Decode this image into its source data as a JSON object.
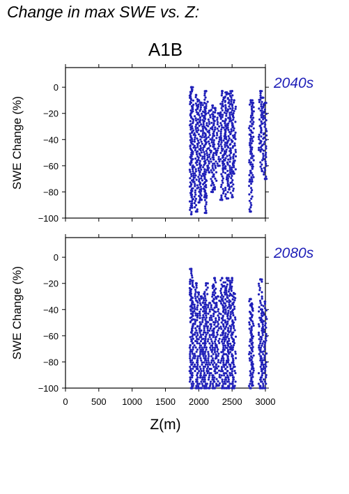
{
  "page": {
    "title": "Change in max SWE vs. Z:"
  },
  "chart_data": {
    "type": "scatter",
    "title": "A1B",
    "xlabel": "Z(m)",
    "ylabel": "SWE Change (%)",
    "xlim": [
      0,
      3000
    ],
    "ylim": [
      -100,
      15
    ],
    "xticks": [
      0,
      500,
      1000,
      1500,
      2000,
      2500,
      3000
    ],
    "yticks": [
      -100,
      -80,
      -60,
      -40,
      -20,
      0
    ],
    "marker_color": "#1f1fb8",
    "grid": false,
    "panels": [
      {
        "label": "2040s",
        "columns": [
          {
            "x": 1888,
            "min": -97,
            "max": 0
          },
          {
            "x": 1900,
            "min": -92,
            "max": -2
          },
          {
            "x": 1960,
            "min": -95,
            "max": -6
          },
          {
            "x": 2000,
            "min": -88,
            "max": -10
          },
          {
            "x": 2040,
            "min": -86,
            "max": -12
          },
          {
            "x": 2085,
            "min": -84,
            "max": -12
          },
          {
            "x": 2110,
            "min": -96,
            "max": -3
          },
          {
            "x": 2160,
            "min": -65,
            "max": -18
          },
          {
            "x": 2210,
            "min": -80,
            "max": -14
          },
          {
            "x": 2240,
            "min": -78,
            "max": -16
          },
          {
            "x": 2290,
            "min": -60,
            "max": -20
          },
          {
            "x": 2350,
            "min": -86,
            "max": -3
          },
          {
            "x": 2380,
            "min": -62,
            "max": -8
          },
          {
            "x": 2420,
            "min": -85,
            "max": -4
          },
          {
            "x": 2455,
            "min": -78,
            "max": -5
          },
          {
            "x": 2500,
            "min": -84,
            "max": -3
          },
          {
            "x": 2530,
            "min": -66,
            "max": -10
          },
          {
            "x": 2780,
            "min": -95,
            "max": -10
          },
          {
            "x": 2800,
            "min": -72,
            "max": -12
          },
          {
            "x": 2925,
            "min": -48,
            "max": -3
          },
          {
            "x": 2950,
            "min": -64,
            "max": -8
          },
          {
            "x": 2995,
            "min": -70,
            "max": -12
          }
        ]
      },
      {
        "label": "2080s",
        "columns": [
          {
            "x": 1888,
            "min": -100,
            "max": -9
          },
          {
            "x": 1900,
            "min": -100,
            "max": -18
          },
          {
            "x": 1960,
            "min": -100,
            "max": -20
          },
          {
            "x": 2000,
            "min": -100,
            "max": -27
          },
          {
            "x": 2040,
            "min": -100,
            "max": -30
          },
          {
            "x": 2085,
            "min": -100,
            "max": -28
          },
          {
            "x": 2110,
            "min": -100,
            "max": -20
          },
          {
            "x": 2160,
            "min": -100,
            "max": -35
          },
          {
            "x": 2210,
            "min": -100,
            "max": -22
          },
          {
            "x": 2240,
            "min": -100,
            "max": -16
          },
          {
            "x": 2290,
            "min": -98,
            "max": -30
          },
          {
            "x": 2350,
            "min": -100,
            "max": -16
          },
          {
            "x": 2380,
            "min": -100,
            "max": -22
          },
          {
            "x": 2420,
            "min": -100,
            "max": -16
          },
          {
            "x": 2455,
            "min": -100,
            "max": -18
          },
          {
            "x": 2500,
            "min": -100,
            "max": -16
          },
          {
            "x": 2530,
            "min": -100,
            "max": -28
          },
          {
            "x": 2780,
            "min": -100,
            "max": -32
          },
          {
            "x": 2800,
            "min": -98,
            "max": -36
          },
          {
            "x": 2925,
            "min": -100,
            "max": -17
          },
          {
            "x": 2950,
            "min": -100,
            "max": -40
          },
          {
            "x": 2995,
            "min": -100,
            "max": -34
          }
        ]
      }
    ]
  }
}
